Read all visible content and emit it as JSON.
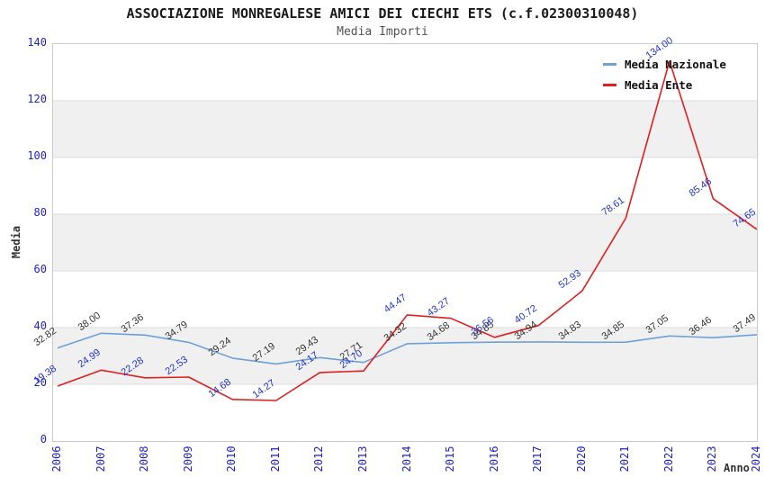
{
  "chart_data": {
    "type": "line",
    "title": "ASSOCIAZIONE MONREGALESE AMICI DEI CIECHI ETS (c.f.02300310048)",
    "subtitle": "Media Importi",
    "xlabel": "Anno",
    "ylabel": "Media",
    "ylim": [
      0,
      140
    ],
    "ytick_step": 20,
    "ytick_labels": [
      "0",
      "20",
      "40",
      "60",
      "80",
      "100",
      "120",
      "140"
    ],
    "grid": "horizontal-bands-alternating",
    "legend_position": "top-right",
    "categories": [
      "2006",
      "2007",
      "2008",
      "2009",
      "2010",
      "2011",
      "2012",
      "2013",
      "2014",
      "2015",
      "2016",
      "2017",
      "2020",
      "2021",
      "2022",
      "2023",
      "2024"
    ],
    "series": [
      {
        "name": "Media Nazionale",
        "color": "#6FA0D8",
        "label_color": "#333333",
        "values": [
          32.82,
          38.0,
          37.36,
          34.79,
          29.24,
          27.19,
          29.43,
          27.71,
          34.32,
          34.68,
          34.85,
          34.94,
          34.83,
          34.85,
          37.05,
          36.46,
          37.49
        ]
      },
      {
        "name": "Media Ente",
        "color": "#E02020",
        "label_color": "#2233CC",
        "values": [
          19.38,
          24.99,
          22.28,
          22.53,
          14.68,
          14.27,
          24.17,
          24.7,
          44.47,
          43.27,
          36.56,
          40.72,
          52.93,
          78.61,
          134.0,
          85.46,
          74.65
        ]
      }
    ],
    "colors": {
      "band_fill": "#F0F0F0",
      "gridline": "#DCDCDC",
      "plot_border": "#CCCCCC",
      "tick_label": "#2222CC",
      "title_text": "#1A1A1A",
      "subtitle_text": "#555555"
    }
  }
}
